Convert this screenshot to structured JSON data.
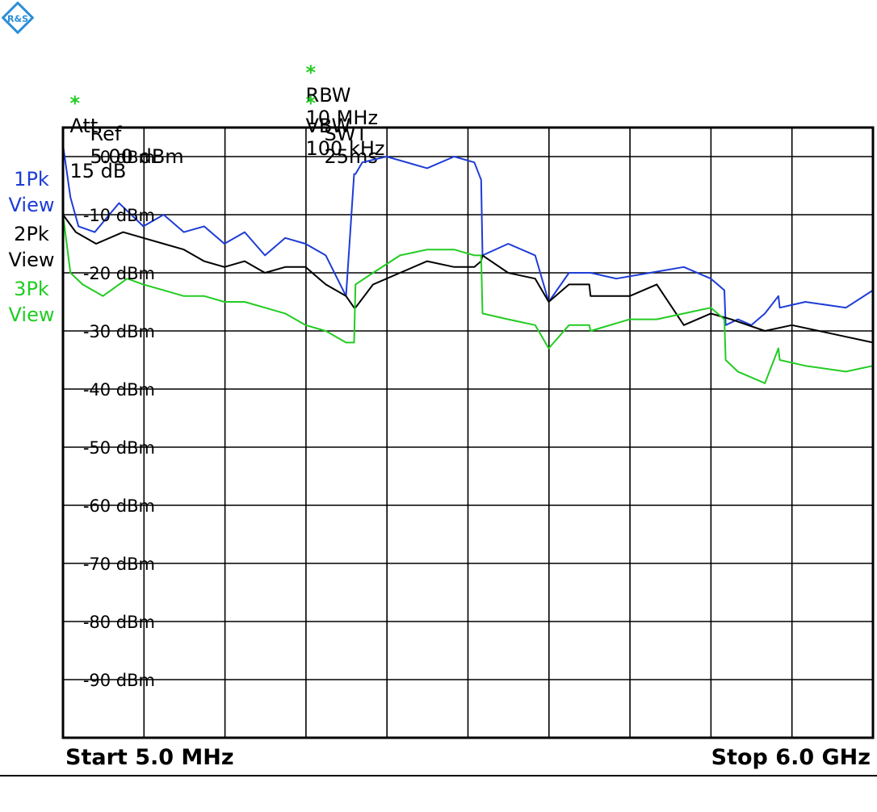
{
  "header": {
    "rbw_label": "RBW",
    "rbw_value": "10 MHz",
    "vbw_label": "VBW",
    "vbw_value": "100 kHz",
    "swt_label": "SWT",
    "swt_value": "25ms",
    "att_label": "Att",
    "att_value": "15 dB",
    "ref_label": "Ref",
    "ref_value": "5.00 dBm",
    "star": "*"
  },
  "traces": {
    "t1": {
      "line1": "1Pk",
      "line2": "View",
      "color": "#1e3cd6"
    },
    "t2": {
      "line1": "2Pk",
      "line2": "View",
      "color": "#000000"
    },
    "t3": {
      "line1": "3Pk",
      "line2": "View",
      "color": "#22cc22"
    }
  },
  "footer": {
    "start": "Start 5.0 MHz",
    "stop": "Stop 6.0 GHz"
  },
  "logo": {
    "icon": "rohde-schwarz-logo-icon",
    "text": "R&S",
    "color": "#2a8fd8"
  },
  "chart_data": {
    "type": "line",
    "xlim": [
      0.005,
      6.0
    ],
    "x_unit": "GHz",
    "ylim": [
      -100,
      5
    ],
    "ytick_labels": [
      "0 dBm",
      "-10 dBm",
      "-20 dBm",
      "-30 dBm",
      "-40 dBm",
      "-50 dBm",
      "-60 dBm",
      "-70 dBm",
      "-80 dBm",
      "-90 dBm"
    ],
    "yticks": [
      0,
      -10,
      -20,
      -30,
      -40,
      -50,
      -60,
      -70,
      -80,
      -90
    ],
    "grid": true,
    "series": [
      {
        "name": "1Pk",
        "color": "#1e3cd6",
        "x": [
          0.005,
          0.06,
          0.12,
          0.24,
          0.42,
          0.6,
          0.75,
          0.9,
          1.05,
          1.2,
          1.35,
          1.5,
          1.65,
          1.8,
          1.95,
          2.1,
          2.16,
          2.17,
          2.22,
          2.4,
          2.7,
          2.9,
          3.05,
          3.1,
          3.11,
          3.3,
          3.5,
          3.6,
          3.75,
          3.9,
          3.91,
          4.1,
          4.35,
          4.6,
          4.8,
          4.9,
          4.91,
          5.0,
          5.1,
          5.2,
          5.3,
          5.31,
          5.5,
          5.8,
          6.0
        ],
        "y": [
          2,
          -7,
          -12,
          -13,
          -8,
          -12,
          -10,
          -13,
          -12,
          -15,
          -13,
          -17,
          -14,
          -15,
          -17,
          -24,
          -3,
          -3,
          -1,
          0,
          -2,
          0,
          -1,
          -4,
          -17,
          -15,
          -17,
          -25,
          -20,
          -20,
          -20,
          -21,
          -20,
          -19,
          -21,
          -23,
          -29,
          -28,
          -29,
          -27,
          -24,
          -26,
          -25,
          -26,
          -23
        ]
      },
      {
        "name": "2Pk",
        "color": "#000000",
        "x": [
          0.005,
          0.1,
          0.25,
          0.45,
          0.6,
          0.75,
          0.9,
          1.05,
          1.2,
          1.35,
          1.5,
          1.65,
          1.8,
          1.95,
          2.1,
          2.16,
          2.17,
          2.3,
          2.5,
          2.7,
          2.9,
          3.05,
          3.1,
          3.11,
          3.3,
          3.5,
          3.6,
          3.75,
          3.9,
          3.91,
          4.2,
          4.4,
          4.6,
          4.8,
          4.95,
          5.2,
          5.4,
          5.6,
          5.8,
          6.0
        ],
        "y": [
          -10,
          -13,
          -15,
          -13,
          -14,
          -15,
          -16,
          -18,
          -19,
          -18,
          -20,
          -19,
          -19,
          -22,
          -24,
          -26,
          -26,
          -22,
          -20,
          -18,
          -19,
          -19,
          -18,
          -17,
          -20,
          -21,
          -25,
          -22,
          -22,
          -24,
          -24,
          -22,
          -29,
          -27,
          -28,
          -30,
          -29,
          -30,
          -31,
          -32
        ]
      },
      {
        "name": "3Pk",
        "color": "#22cc22",
        "x": [
          0.005,
          0.06,
          0.15,
          0.3,
          0.48,
          0.6,
          0.75,
          0.9,
          1.05,
          1.2,
          1.35,
          1.5,
          1.65,
          1.8,
          1.95,
          2.1,
          2.16,
          2.17,
          2.3,
          2.5,
          2.7,
          2.9,
          3.05,
          3.1,
          3.11,
          3.3,
          3.5,
          3.6,
          3.75,
          3.9,
          3.91,
          4.2,
          4.4,
          4.6,
          4.8,
          4.9,
          4.91,
          5.0,
          5.1,
          5.2,
          5.3,
          5.31,
          5.5,
          5.8,
          6.0
        ],
        "y": [
          -10,
          -20,
          -22,
          -24,
          -21,
          -22,
          -23,
          -24,
          -24,
          -25,
          -25,
          -26,
          -27,
          -29,
          -30,
          -32,
          -32,
          -22,
          -20,
          -17,
          -16,
          -16,
          -17,
          -17,
          -27,
          -28,
          -29,
          -33,
          -29,
          -29,
          -30,
          -28,
          -28,
          -27,
          -26,
          -28,
          -35,
          -37,
          -38,
          -39,
          -33,
          -35,
          -36,
          -37,
          -36
        ]
      }
    ]
  }
}
